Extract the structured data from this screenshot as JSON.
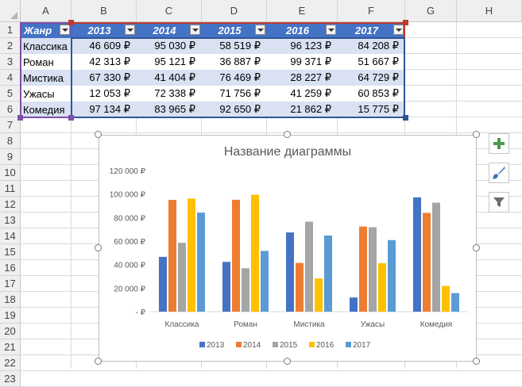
{
  "columns": [
    "A",
    "B",
    "C",
    "D",
    "E",
    "F",
    "G",
    "H"
  ],
  "rows": [
    "1",
    "2",
    "3",
    "4",
    "5",
    "6",
    "7",
    "8",
    "9",
    "10",
    "11",
    "12",
    "13",
    "14",
    "15",
    "16",
    "17",
    "18",
    "19",
    "20",
    "21",
    "22",
    "23"
  ],
  "table": {
    "header": [
      "Жанр",
      "2013",
      "2014",
      "2015",
      "2016",
      "2017"
    ],
    "data": [
      [
        "Классика",
        "46 609 ₽",
        "95 030 ₽",
        "58 519 ₽",
        "96 123 ₽",
        "84 208 ₽"
      ],
      [
        "Роман",
        "42 313 ₽",
        "95 121 ₽",
        "36 887 ₽",
        "99 371 ₽",
        "51 667 ₽"
      ],
      [
        "Мистика",
        "67 330 ₽",
        "41 404 ₽",
        "76 469 ₽",
        "28 227 ₽",
        "64 729 ₽"
      ],
      [
        "Ужасы",
        "12 053 ₽",
        "72 338 ₽",
        "71 756 ₽",
        "41 259 ₽",
        "60 853 ₽"
      ],
      [
        "Комедия",
        "97 134 ₽",
        "83 965 ₽",
        "92 650 ₽",
        "21 862 ₽",
        "15 775 ₽"
      ]
    ]
  },
  "chart_data": {
    "type": "bar",
    "title": "Название диаграммы",
    "categories": [
      "Классика",
      "Роман",
      "Мистика",
      "Ужасы",
      "Комедия"
    ],
    "series": [
      {
        "name": "2013",
        "color": "#4472c4",
        "values": [
          46609,
          42313,
          67330,
          12053,
          97134
        ]
      },
      {
        "name": "2014",
        "color": "#ed7d31",
        "values": [
          95030,
          95121,
          41404,
          72338,
          83965
        ]
      },
      {
        "name": "2015",
        "color": "#a5a5a5",
        "values": [
          58519,
          36887,
          76469,
          71756,
          92650
        ]
      },
      {
        "name": "2016",
        "color": "#ffc000",
        "values": [
          96123,
          99371,
          28227,
          41259,
          21862
        ]
      },
      {
        "name": "2017",
        "color": "#5b9bd5",
        "values": [
          84208,
          51667,
          64729,
          60853,
          15775
        ]
      }
    ],
    "ylim": [
      0,
      120000
    ],
    "yticks": [
      0,
      20000,
      40000,
      60000,
      80000,
      100000,
      120000
    ],
    "ytick_labels": [
      "-  ₽",
      "20 000 ₽",
      "40 000 ₽",
      "60 000 ₽",
      "80 000 ₽",
      "100 000 ₽",
      "120 000 ₽"
    ],
    "grid": false,
    "legend": "bottom"
  },
  "side_buttons": [
    {
      "name": "chart-elements-button",
      "icon": "plus-icon"
    },
    {
      "name": "chart-styles-button",
      "icon": "brush-icon"
    },
    {
      "name": "chart-filters-button",
      "icon": "filter-icon"
    }
  ],
  "colors": {
    "header_fill": "#4472c4",
    "band_fill": "#d9e1f2",
    "range_red": "#c0392b",
    "range_blue": "#2f5597",
    "range_purple": "#7f4fa8"
  }
}
